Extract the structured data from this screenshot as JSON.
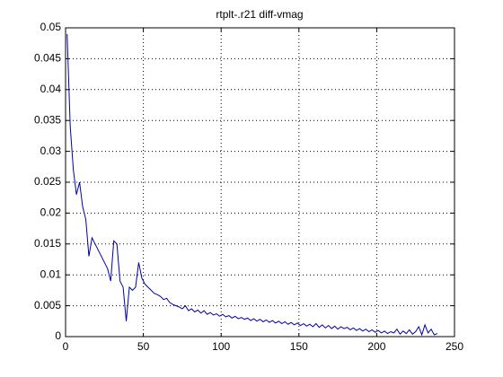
{
  "chart_data": {
    "type": "line",
    "title": "rtplt-.r21 diff-vmag",
    "x": [
      1,
      3,
      5,
      7,
      9,
      11,
      13,
      15,
      17,
      19,
      21,
      23,
      25,
      27,
      29,
      31,
      33,
      35,
      37,
      39,
      41,
      43,
      45,
      47,
      49,
      51,
      53,
      55,
      57,
      59,
      61,
      63,
      65,
      67,
      69,
      71,
      73,
      75,
      77,
      79,
      81,
      83,
      85,
      87,
      89,
      91,
      93,
      95,
      97,
      99,
      101,
      103,
      105,
      107,
      109,
      111,
      113,
      115,
      117,
      119,
      121,
      123,
      125,
      127,
      129,
      131,
      133,
      135,
      137,
      139,
      141,
      143,
      145,
      147,
      149,
      151,
      153,
      155,
      157,
      159,
      161,
      163,
      165,
      167,
      169,
      171,
      173,
      175,
      177,
      179,
      181,
      183,
      185,
      187,
      189,
      191,
      193,
      195,
      197,
      199,
      201,
      203,
      205,
      207,
      209,
      211,
      213,
      215,
      217,
      219,
      221,
      223,
      225,
      227,
      229,
      231,
      233,
      235,
      237,
      239
    ],
    "values": [
      0.049,
      0.034,
      0.027,
      0.023,
      0.025,
      0.021,
      0.019,
      0.013,
      0.016,
      0.015,
      0.014,
      0.013,
      0.012,
      0.011,
      0.009,
      0.0155,
      0.015,
      0.009,
      0.008,
      0.0025,
      0.008,
      0.0075,
      0.008,
      0.012,
      0.0095,
      0.0085,
      0.008,
      0.0075,
      0.007,
      0.0068,
      0.0065,
      0.006,
      0.0062,
      0.0055,
      0.0052,
      0.005,
      0.0048,
      0.0045,
      0.005,
      0.0042,
      0.0045,
      0.004,
      0.0043,
      0.0038,
      0.0042,
      0.0036,
      0.0039,
      0.0035,
      0.0037,
      0.0033,
      0.0036,
      0.0032,
      0.0034,
      0.003,
      0.0033,
      0.0029,
      0.0031,
      0.0028,
      0.003,
      0.0026,
      0.0029,
      0.0025,
      0.0028,
      0.0024,
      0.0027,
      0.0023,
      0.0026,
      0.0022,
      0.0025,
      0.0021,
      0.0024,
      0.002,
      0.0023,
      0.0019,
      0.0022,
      0.0018,
      0.0021,
      0.0017,
      0.002,
      0.0016,
      0.0021,
      0.0015,
      0.0019,
      0.0014,
      0.0018,
      0.0013,
      0.0017,
      0.0012,
      0.0016,
      0.0013,
      0.0015,
      0.0011,
      0.0014,
      0.001,
      0.0013,
      0.0009,
      0.0012,
      0.0008,
      0.0011,
      0.0007,
      0.001,
      0.0006,
      0.0009,
      0.0005,
      0.0008,
      0.0006,
      0.0012,
      0.0004,
      0.0009,
      0.0005,
      0.0011,
      0.0004,
      0.0008,
      0.0016,
      0.0003,
      0.0019,
      0.0006,
      0.0012,
      0.0003,
      0.0005
    ],
    "color": "#0000aa",
    "xlim": [
      0,
      250
    ],
    "xticks": [
      0,
      50,
      100,
      150,
      200,
      250
    ],
    "ylim": [
      0,
      0.05
    ],
    "yticks": [
      0,
      0.005,
      0.01,
      0.015,
      0.02,
      0.025,
      0.03,
      0.035,
      0.04,
      0.045,
      0.05
    ],
    "grid": true
  }
}
